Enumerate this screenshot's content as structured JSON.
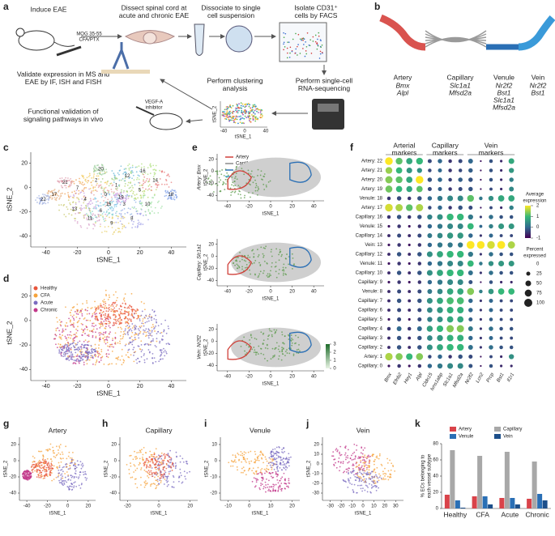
{
  "panels": {
    "a": {
      "letter": "a",
      "labels": [
        [
          "Induce EAE"
        ],
        [
          "MOG 35-55",
          "CFA/PTX"
        ],
        [
          "Dissect spinal cord at",
          "acute and chronic EAE"
        ],
        [
          "Dissociate to single",
          "cell suspension"
        ],
        [
          "Isolate CD31⁺",
          "cells by FACS"
        ],
        [
          "Validate expression in MS and",
          "EAE by IF, ISH and FISH"
        ],
        [
          "Perform clustering",
          "analysis"
        ],
        [
          "Perform single-cell",
          "RNA-sequencing"
        ],
        [
          "Functional validation of",
          "signaling pathways in vivo"
        ],
        [
          "VEGF-A",
          "inhibitor"
        ]
      ],
      "mini_axes": {
        "x_label": "tSNE_1",
        "y_label": "tSNE_2",
        "xticks": [
          -40,
          0,
          40
        ]
      }
    },
    "b": {
      "letter": "b",
      "vessels": [
        {
          "name": "Artery",
          "color": "#d9534f",
          "markers": [
            "Bmx",
            "Alpl"
          ]
        },
        {
          "name": "Capillary",
          "color": "#9a9a9a",
          "markers": [
            "Slc1a1",
            "Mfsd2a"
          ]
        },
        {
          "name": "Venule",
          "color": "#2a6fb5",
          "markers": [
            "Nr2f2",
            "Bst1",
            "Slc1a1",
            "Mfsd2a"
          ]
        },
        {
          "name": "Vein",
          "color": "#3a9ad9",
          "markers": [
            "Nr2f2",
            "Bst1"
          ]
        }
      ]
    },
    "c": {
      "letter": "c",
      "x_label": "tSNE_1",
      "y_label": "tSNE_2",
      "xticks": [
        -40,
        -20,
        0,
        20,
        40
      ],
      "yticks": [
        -40,
        -20,
        0,
        20
      ],
      "clusters": [
        0,
        1,
        2,
        3,
        4,
        5,
        6,
        7,
        8,
        9,
        10,
        11,
        12,
        13,
        14,
        15,
        16,
        17,
        18,
        19,
        20,
        21,
        22
      ]
    },
    "d": {
      "letter": "d",
      "x_label": "tSNE_1",
      "y_label": "tSNE_2",
      "xticks": [
        -40,
        -20,
        0,
        20,
        40
      ],
      "yticks": [
        -40,
        -20,
        0,
        20
      ],
      "legend": [
        {
          "name": "Healthy",
          "color": "#e8553b"
        },
        {
          "name": "CFA",
          "color": "#f5a23a"
        },
        {
          "name": "Acute",
          "color": "#7a6bc0"
        },
        {
          "name": "Chronic",
          "color": "#c2378a"
        }
      ]
    },
    "e": {
      "letter": "e",
      "legend": [
        {
          "name": "Artery",
          "color": "#d0413a"
        },
        {
          "name": "Capillary",
          "color": "#8a8a8a"
        },
        {
          "name": "Venule",
          "color": "#2a6fb5"
        },
        {
          "name": "Vein",
          "color": "#38a3d9"
        }
      ],
      "gene_labels": [
        "Artery: Bmx",
        "Capillary: Slc1a1",
        "Vein: Nr2f2"
      ],
      "x_label": "tSNE_1",
      "y_label": "tSNE_2",
      "xticks": [
        -40,
        -20,
        0,
        20,
        40
      ],
      "yticks": [
        -40,
        -20,
        0,
        20
      ],
      "colorbar_ticks": [
        0,
        1,
        2,
        3
      ]
    },
    "f": {
      "letter": "f",
      "groups": [
        [
          "Arterial",
          "markers"
        ],
        [
          "Capillary",
          "markers"
        ],
        [
          "Vein",
          "markers"
        ]
      ],
      "genes": [
        "Bmx",
        "Efnb2",
        "Hey1",
        "Alpl",
        "Cldn15",
        "Ivns1abp",
        "Slc1a1",
        "Mfsd2a",
        "Nr2f2",
        "Lcn2",
        "Prcp",
        "Bst1",
        "Il1r1"
      ],
      "rows": [
        "Artery: 22",
        "Artery: 21",
        "Artery: 20",
        "Artery: 19",
        "Venule: 18",
        "Artery: 17",
        "Capillary: 16",
        "Venule: 15",
        "Capillary: 14",
        "Vein: 13",
        "Capillary: 12",
        "Venule: 11",
        "Capillary: 10",
        "Capillary: 9",
        "Venule: 8",
        "Capillary: 7",
        "Capillary: 6",
        "Capillary: 5",
        "Capillary: 4",
        "Capillary: 3",
        "Capillary: 2",
        "Artery: 1",
        "Capillary: 0"
      ],
      "percent": [
        [
          90,
          70,
          60,
          70,
          25,
          30,
          20,
          25,
          35,
          5,
          20,
          10,
          50
        ],
        [
          70,
          60,
          50,
          40,
          20,
          25,
          20,
          20,
          30,
          5,
          20,
          10,
          40
        ],
        [
          80,
          70,
          60,
          90,
          30,
          30,
          20,
          30,
          30,
          5,
          20,
          10,
          30
        ],
        [
          75,
          60,
          55,
          60,
          25,
          25,
          20,
          25,
          30,
          5,
          15,
          10,
          35
        ],
        [
          20,
          30,
          20,
          30,
          30,
          40,
          50,
          50,
          70,
          20,
          40,
          60,
          60
        ],
        [
          90,
          80,
          70,
          80,
          20,
          30,
          20,
          30,
          25,
          5,
          15,
          10,
          30
        ],
        [
          20,
          30,
          20,
          30,
          40,
          50,
          70,
          70,
          40,
          10,
          30,
          20,
          20
        ],
        [
          10,
          20,
          10,
          20,
          30,
          40,
          50,
          50,
          60,
          15,
          30,
          50,
          50
        ],
        [
          15,
          25,
          15,
          25,
          35,
          45,
          55,
          55,
          30,
          10,
          25,
          15,
          15
        ],
        [
          10,
          20,
          10,
          20,
          30,
          40,
          40,
          40,
          95,
          90,
          90,
          95,
          80
        ],
        [
          15,
          30,
          15,
          30,
          50,
          60,
          70,
          70,
          40,
          10,
          30,
          20,
          20
        ],
        [
          10,
          20,
          10,
          20,
          30,
          40,
          50,
          50,
          60,
          20,
          40,
          50,
          50
        ],
        [
          15,
          30,
          15,
          30,
          50,
          60,
          70,
          70,
          35,
          10,
          30,
          20,
          20
        ],
        [
          10,
          20,
          10,
          20,
          30,
          40,
          50,
          50,
          25,
          5,
          20,
          10,
          10
        ],
        [
          15,
          25,
          15,
          25,
          35,
          45,
          60,
          60,
          75,
          20,
          45,
          60,
          60
        ],
        [
          15,
          30,
          15,
          30,
          50,
          60,
          75,
          75,
          30,
          10,
          25,
          15,
          15
        ],
        [
          15,
          25,
          15,
          25,
          45,
          55,
          65,
          65,
          30,
          10,
          25,
          15,
          15
        ],
        [
          10,
          25,
          10,
          25,
          40,
          50,
          60,
          60,
          25,
          10,
          20,
          15,
          15
        ],
        [
          20,
          35,
          20,
          35,
          55,
          65,
          80,
          80,
          35,
          10,
          30,
          20,
          20
        ],
        [
          15,
          30,
          15,
          30,
          45,
          55,
          65,
          65,
          30,
          10,
          25,
          15,
          15
        ],
        [
          15,
          30,
          15,
          30,
          50,
          60,
          70,
          70,
          35,
          10,
          30,
          20,
          20
        ],
        [
          85,
          75,
          65,
          75,
          20,
          30,
          20,
          30,
          25,
          5,
          15,
          10,
          40
        ],
        [
          10,
          20,
          10,
          20,
          30,
          40,
          50,
          50,
          25,
          5,
          20,
          10,
          10
        ]
      ],
      "expression": [
        [
          2.2,
          1.2,
          0.8,
          1,
          -0.3,
          0,
          -0.5,
          -0.3,
          0,
          -0.8,
          -0.2,
          -0.6,
          0.8
        ],
        [
          1.5,
          1,
          0.6,
          0.5,
          -0.3,
          0,
          -0.5,
          -0.3,
          -0.1,
          -0.8,
          -0.2,
          -0.6,
          0.6
        ],
        [
          1.4,
          1.2,
          0.8,
          2,
          -0.2,
          0,
          -0.4,
          -0.1,
          -0.2,
          -0.8,
          -0.2,
          -0.6,
          0.3
        ],
        [
          1.3,
          1,
          0.8,
          1.2,
          -0.3,
          -0.1,
          -0.5,
          -0.3,
          -0.2,
          -0.8,
          -0.3,
          -0.6,
          0.4
        ],
        [
          -0.5,
          -0.3,
          -0.5,
          -0.2,
          0,
          0.2,
          0.4,
          0.4,
          1.2,
          0.2,
          0.5,
          0.8,
          0.8
        ],
        [
          1.8,
          1.6,
          1.2,
          1.6,
          -0.3,
          0,
          -0.5,
          -0.2,
          -0.3,
          -0.8,
          -0.3,
          -0.6,
          0.3
        ],
        [
          -0.5,
          -0.2,
          -0.5,
          -0.2,
          0.3,
          0.5,
          1,
          1,
          0.2,
          -0.4,
          0.1,
          -0.2,
          -0.2
        ],
        [
          -0.8,
          -0.5,
          -0.8,
          -0.5,
          0,
          0.2,
          0.4,
          0.4,
          1,
          0,
          0.3,
          0.6,
          0.6
        ],
        [
          -0.6,
          -0.3,
          -0.6,
          -0.3,
          0.2,
          0.4,
          0.6,
          0.6,
          0,
          -0.5,
          0,
          -0.3,
          -0.3
        ],
        [
          -0.8,
          -0.5,
          -0.8,
          -0.5,
          0,
          0.2,
          0.2,
          0.2,
          2.2,
          2,
          1.8,
          2.2,
          1.6
        ],
        [
          -0.6,
          -0.2,
          -0.6,
          -0.2,
          0.5,
          0.8,
          1,
          1,
          0.2,
          -0.5,
          0.1,
          -0.2,
          -0.2
        ],
        [
          -0.8,
          -0.5,
          -0.8,
          -0.5,
          0,
          0.2,
          0.4,
          0.4,
          1,
          0.2,
          0.5,
          0.6,
          0.6
        ],
        [
          -0.6,
          -0.2,
          -0.6,
          -0.2,
          0.5,
          0.8,
          1,
          1,
          0.1,
          -0.5,
          0.1,
          -0.2,
          -0.2
        ],
        [
          -0.8,
          -0.5,
          -0.8,
          -0.5,
          0,
          0.2,
          0.4,
          0.4,
          -0.2,
          -0.8,
          -0.2,
          -0.6,
          -0.6
        ],
        [
          -0.6,
          -0.3,
          -0.6,
          -0.3,
          0.2,
          0.4,
          0.8,
          0.8,
          1.4,
          0.3,
          0.6,
          1,
          1
        ],
        [
          -0.6,
          -0.2,
          -0.6,
          -0.2,
          0.5,
          0.8,
          1.1,
          1.1,
          0,
          -0.5,
          0,
          -0.3,
          -0.3
        ],
        [
          -0.6,
          -0.3,
          -0.6,
          -0.3,
          0.4,
          0.6,
          0.9,
          0.9,
          0,
          -0.5,
          0,
          -0.3,
          -0.3
        ],
        [
          -0.8,
          -0.3,
          -0.8,
          -0.3,
          0.3,
          0.5,
          0.8,
          0.8,
          -0.1,
          -0.5,
          -0.1,
          -0.3,
          -0.3
        ],
        [
          -0.5,
          0,
          -0.5,
          0,
          0.7,
          1,
          1.4,
          1.4,
          0.2,
          -0.5,
          0.1,
          -0.2,
          -0.2
        ],
        [
          -0.6,
          -0.2,
          -0.6,
          -0.2,
          0.4,
          0.6,
          0.9,
          0.9,
          0,
          -0.5,
          0,
          -0.3,
          -0.3
        ],
        [
          -0.6,
          -0.2,
          -0.6,
          -0.2,
          0.5,
          0.8,
          1,
          1,
          0.1,
          -0.5,
          0.1,
          -0.2,
          -0.2
        ],
        [
          1.6,
          1.4,
          1,
          1.4,
          -0.3,
          0,
          -0.5,
          -0.2,
          -0.3,
          -0.8,
          -0.3,
          -0.6,
          0.5
        ],
        [
          -0.8,
          -0.5,
          -0.8,
          -0.5,
          0,
          0.2,
          0.4,
          0.4,
          -0.2,
          -0.8,
          -0.2,
          -0.6,
          -0.6
        ]
      ],
      "expression_title": [
        "Average",
        "expression"
      ],
      "expression_ticks": [
        -1,
        0,
        1,
        2
      ],
      "percent_title": [
        "Percent",
        "expressed"
      ],
      "percent_ticks": [
        0,
        25,
        50,
        75,
        100
      ]
    },
    "g": {
      "letter": "g",
      "title": "Artery",
      "x_label": "tSNE_1",
      "y_label": "tSNE_2",
      "xticks": [
        -40,
        -20,
        0,
        20
      ],
      "yticks": [
        -40,
        -20,
        0,
        20
      ]
    },
    "h": {
      "letter": "h",
      "title": "Capillary",
      "x_label": "tSNE_1",
      "y_label": "tSNE_2",
      "xticks": [
        -20,
        0,
        20
      ],
      "yticks": [
        -40,
        -20,
        0,
        20
      ]
    },
    "i": {
      "letter": "i",
      "title": "Venule",
      "x_label": "tSNE_1",
      "y_label": "tSNE_2",
      "xticks": [
        -10,
        0,
        10,
        20
      ],
      "yticks": [
        -20,
        -10,
        0,
        10
      ]
    },
    "j": {
      "letter": "j",
      "title": "Vein",
      "x_label": "tSNE_1",
      "y_label": "tSNE_2",
      "xticks": [
        -30,
        -20,
        -10,
        0,
        10,
        20,
        30
      ],
      "yticks": [
        -30,
        -20,
        -10,
        0,
        10,
        20
      ]
    },
    "k": {
      "letter": "k",
      "y_label": [
        "% ECs belonging to",
        "each vessel subtype"
      ],
      "categories": [
        "Healthy",
        "CFA",
        "Acute",
        "Chronic"
      ],
      "ylim": [
        0,
        80
      ],
      "yticks": [
        0,
        20,
        40,
        60,
        80
      ],
      "series": [
        {
          "name": "Artery",
          "color": "#d9434a",
          "values": [
            17,
            15,
            13,
            12
          ]
        },
        {
          "name": "Capillary",
          "color": "#a8a8a8",
          "values": [
            72,
            65,
            70,
            58
          ]
        },
        {
          "name": "Venule",
          "color": "#2a6fb5",
          "values": [
            10,
            15,
            13,
            18
          ]
        },
        {
          "name": "Vein",
          "color": "#1d4f8a",
          "values": [
            1,
            5,
            5,
            10
          ]
        }
      ]
    }
  }
}
